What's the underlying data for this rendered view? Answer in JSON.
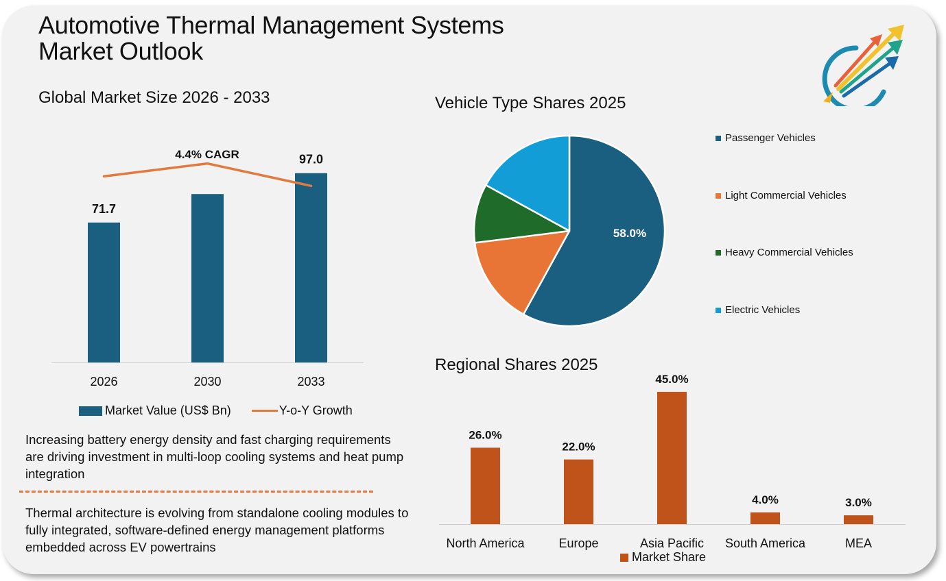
{
  "title_line1": "Automotive Thermal Management Systems",
  "title_line2": "Market Outlook",
  "colors": {
    "market_bar": "#1a5e80",
    "growth_line": "#e07a3f",
    "regional_bar": "#c0531a",
    "card_bg": "#f2f2f2",
    "passenger": "#1a5e80",
    "light_commercial": "#e87435",
    "heavy_commercial": "#1e6b2a",
    "electric": "#139dd6"
  },
  "notes": [
    "Increasing battery energy density and fast charging requirements are driving investment in multi-loop cooling systems and heat pump integration",
    "Thermal architecture is evolving from standalone cooling modules to fully integrated, software-defined energy management platforms embedded across EV powertrains"
  ],
  "chart_data": [
    {
      "type": "bar",
      "title": "Global Market Size 2026 - 2033",
      "categories": [
        "2026",
        "2030",
        "2033"
      ],
      "series": [
        {
          "name": "Market Value (US$ Bn)",
          "kind": "bar",
          "values": [
            71.7,
            86.3,
            97.0
          ],
          "labels": [
            "71.7",
            "",
            "97.0"
          ]
        },
        {
          "name": "Y-o-Y Growth",
          "kind": "line",
          "values": [
            4.2,
            4.6,
            3.9
          ]
        }
      ],
      "annotation": "4.4% CAGR",
      "xlabel": "",
      "ylabel": "",
      "ylim": [
        0,
        100
      ],
      "grid": false,
      "legend": "bottom"
    },
    {
      "type": "pie",
      "title": "Vehicle Type Shares 2025",
      "categories": [
        "Passenger Vehicles",
        "Light Commercial Vehicles",
        "Heavy Commercial Vehicles",
        "Electric Vehicles"
      ],
      "values": [
        58.0,
        15.0,
        10.0,
        17.0
      ],
      "labels": [
        "58.0%",
        "",
        "",
        ""
      ],
      "legend": "right"
    },
    {
      "type": "bar",
      "title": "Regional Shares 2025",
      "categories": [
        "North America",
        "Europe",
        "Asia Pacific",
        "South America",
        "MEA"
      ],
      "series": [
        {
          "name": "Market Share",
          "values": [
            26.0,
            22.0,
            45.0,
            4.0,
            3.0
          ],
          "labels": [
            "26.0%",
            "22.0%",
            "45.0%",
            "4.0%",
            "3.0%"
          ]
        }
      ],
      "xlabel": "",
      "ylabel": "",
      "ylim": [
        0,
        50
      ],
      "grid": false,
      "legend": "bottom"
    }
  ]
}
